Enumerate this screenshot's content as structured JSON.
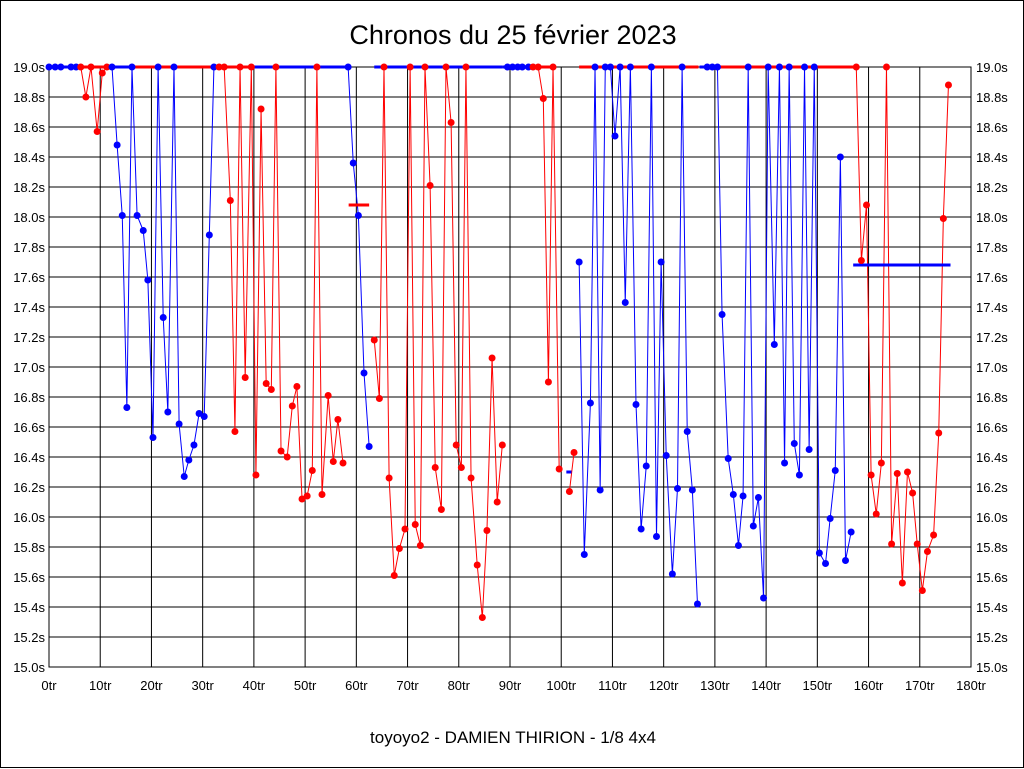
{
  "chart_data": {
    "type": "line",
    "title": "Chronos du 25 février 2023",
    "footer": "toyoyo2 - DAMIEN THIRION - 1/8 4x4",
    "xlim": [
      0,
      180
    ],
    "ylim": [
      15.0,
      19.0
    ],
    "x_ticks": [
      "0tr",
      "10tr",
      "20tr",
      "30tr",
      "40tr",
      "50tr",
      "60tr",
      "70tr",
      "80tr",
      "90tr",
      "100tr",
      "110tr",
      "120tr",
      "130tr",
      "140tr",
      "150tr",
      "160tr",
      "170tr",
      "180tr"
    ],
    "y_ticks": [
      "15.0s",
      "15.2s",
      "15.4s",
      "15.6s",
      "15.8s",
      "16.0s",
      "16.2s",
      "16.4s",
      "16.6s",
      "16.8s",
      "17.0s",
      "17.2s",
      "17.4s",
      "17.6s",
      "17.8s",
      "18.0s",
      "18.2s",
      "18.4s",
      "18.6s",
      "18.8s",
      "19.0s"
    ],
    "grid": true,
    "colors": {
      "A": "#0000ff",
      "B": "#ff0000"
    },
    "runs": [
      {
        "series": "A",
        "points": [
          [
            0,
            19
          ],
          [
            1.2,
            19
          ],
          [
            2.3,
            19
          ],
          [
            4.3,
            19
          ],
          [
            5.3,
            19
          ]
        ]
      },
      {
        "series": "B",
        "points": [
          [
            6.2,
            19
          ],
          [
            7.2,
            18.8
          ],
          [
            8.2,
            19
          ],
          [
            9.4,
            18.57
          ],
          [
            10.4,
            18.96
          ],
          [
            11.3,
            19
          ]
        ]
      },
      {
        "series": "A",
        "points": [
          [
            12.3,
            19
          ],
          [
            13.3,
            18.48
          ],
          [
            14.3,
            18.01
          ],
          [
            15.2,
            16.73
          ],
          [
            16.2,
            19
          ],
          [
            17.2,
            18.01
          ],
          [
            18.4,
            17.91
          ],
          [
            19.3,
            17.58
          ],
          [
            20.3,
            16.53
          ],
          [
            21.3,
            19
          ],
          [
            22.3,
            17.33
          ],
          [
            23.2,
            16.7
          ],
          [
            24.4,
            19
          ],
          [
            25.4,
            16.62
          ],
          [
            26.4,
            16.27
          ],
          [
            27.3,
            16.38
          ],
          [
            28.3,
            16.48
          ],
          [
            29.3,
            16.69
          ],
          [
            30.3,
            16.67
          ],
          [
            31.3,
            17.88
          ],
          [
            32.2,
            19
          ]
        ]
      },
      {
        "series": "B",
        "points": [
          [
            33.2,
            19
          ],
          [
            34.2,
            19
          ],
          [
            35.4,
            18.11
          ],
          [
            36.3,
            16.57
          ],
          [
            37.3,
            19
          ],
          [
            38.3,
            16.93
          ],
          [
            39.5,
            19
          ],
          [
            40.4,
            16.28
          ],
          [
            41.4,
            18.72
          ],
          [
            42.4,
            16.89
          ],
          [
            43.4,
            16.85
          ],
          [
            44.3,
            19
          ],
          [
            45.3,
            16.44
          ],
          [
            46.5,
            16.4
          ],
          [
            47.5,
            16.74
          ],
          [
            48.4,
            16.87
          ],
          [
            49.4,
            16.12
          ],
          [
            50.4,
            16.14
          ],
          [
            51.4,
            16.31
          ],
          [
            52.3,
            19
          ],
          [
            53.3,
            16.15
          ],
          [
            54.5,
            16.81
          ],
          [
            55.5,
            16.37
          ],
          [
            56.4,
            16.65
          ],
          [
            57.4,
            16.36
          ]
        ]
      },
      {
        "series": "A",
        "points": [
          [
            58.4,
            19
          ],
          [
            59.4,
            18.36
          ],
          [
            60.4,
            18.01
          ],
          [
            61.5,
            16.96
          ],
          [
            62.5,
            16.47
          ]
        ]
      },
      {
        "series": "B",
        "points": [
          [
            63.5,
            17.18
          ],
          [
            64.5,
            16.79
          ],
          [
            65.4,
            19
          ],
          [
            66.4,
            16.26
          ],
          [
            67.4,
            15.61
          ],
          [
            68.4,
            15.79
          ],
          [
            69.5,
            15.92
          ],
          [
            70.5,
            19
          ],
          [
            71.5,
            15.95
          ],
          [
            72.5,
            15.81
          ],
          [
            73.4,
            19
          ],
          [
            74.4,
            18.21
          ],
          [
            75.4,
            16.33
          ],
          [
            76.6,
            16.05
          ],
          [
            77.5,
            19
          ],
          [
            78.5,
            18.63
          ],
          [
            79.5,
            16.48
          ],
          [
            80.5,
            16.33
          ],
          [
            81.4,
            19
          ],
          [
            82.4,
            16.26
          ],
          [
            83.6,
            15.68
          ],
          [
            84.6,
            15.33
          ],
          [
            85.5,
            15.91
          ],
          [
            86.5,
            17.06
          ],
          [
            87.5,
            16.1
          ],
          [
            88.5,
            16.48
          ]
        ]
      },
      {
        "series": "A",
        "points": [
          [
            89.5,
            19
          ],
          [
            90.5,
            19
          ],
          [
            91.5,
            19
          ],
          [
            92.4,
            19
          ],
          [
            93.6,
            19
          ]
        ]
      },
      {
        "series": "B",
        "points": [
          [
            94.5,
            19
          ],
          [
            95.5,
            19
          ],
          [
            96.5,
            18.79
          ],
          [
            97.5,
            16.9
          ],
          [
            98.4,
            19
          ],
          [
            99.6,
            16.32
          ]
        ]
      },
      {
        "series": "B",
        "points": [
          [
            101.6,
            16.17
          ],
          [
            102.5,
            16.43
          ]
        ]
      },
      {
        "series": "A",
        "points": [
          [
            103.5,
            17.7
          ],
          [
            104.5,
            15.75
          ],
          [
            105.7,
            16.76
          ],
          [
            106.6,
            19
          ],
          [
            107.6,
            16.18
          ],
          [
            108.6,
            19
          ],
          [
            109.6,
            19
          ],
          [
            110.5,
            18.54
          ],
          [
            111.5,
            19
          ],
          [
            112.5,
            17.43
          ],
          [
            113.5,
            19
          ],
          [
            114.6,
            16.75
          ],
          [
            115.6,
            15.92
          ],
          [
            116.6,
            16.34
          ],
          [
            117.6,
            19
          ],
          [
            118.6,
            15.87
          ],
          [
            119.5,
            17.7
          ],
          [
            120.5,
            16.41
          ],
          [
            121.7,
            15.62
          ],
          [
            122.7,
            16.19
          ],
          [
            123.6,
            19
          ],
          [
            124.6,
            16.57
          ],
          [
            125.6,
            16.18
          ],
          [
            126.6,
            15.42
          ]
        ]
      },
      {
        "series": "A",
        "points": [
          [
            128.5,
            19
          ],
          [
            129.5,
            19
          ],
          [
            130.5,
            19
          ],
          [
            131.4,
            17.35
          ],
          [
            132.6,
            16.39
          ],
          [
            133.6,
            16.15
          ],
          [
            134.6,
            15.81
          ],
          [
            135.5,
            16.14
          ],
          [
            136.5,
            19
          ],
          [
            137.5,
            15.94
          ],
          [
            138.5,
            16.13
          ],
          [
            139.5,
            15.46
          ],
          [
            140.4,
            19
          ],
          [
            141.6,
            17.15
          ],
          [
            142.6,
            19
          ],
          [
            143.6,
            16.36
          ],
          [
            144.5,
            19
          ],
          [
            145.5,
            16.49
          ],
          [
            146.5,
            16.28
          ],
          [
            147.5,
            19
          ],
          [
            148.4,
            16.45
          ],
          [
            149.4,
            19
          ],
          [
            150.4,
            15.76
          ],
          [
            151.6,
            15.69
          ],
          [
            152.5,
            15.99
          ],
          [
            153.5,
            16.31
          ],
          [
            154.5,
            18.4
          ],
          [
            155.5,
            15.71
          ],
          [
            156.6,
            15.9
          ]
        ]
      },
      {
        "series": "B",
        "points": [
          [
            157.6,
            19
          ],
          [
            158.6,
            17.71
          ],
          [
            159.6,
            18.08
          ],
          [
            160.5,
            16.28
          ],
          [
            161.5,
            16.02
          ],
          [
            162.5,
            16.36
          ],
          [
            163.5,
            19
          ],
          [
            164.5,
            15.82
          ],
          [
            165.6,
            16.29
          ],
          [
            166.6,
            15.56
          ],
          [
            167.6,
            16.3
          ],
          [
            168.6,
            16.16
          ],
          [
            169.5,
            15.82
          ],
          [
            170.5,
            15.51
          ],
          [
            171.5,
            15.77
          ],
          [
            172.7,
            15.88
          ],
          [
            173.7,
            16.56
          ],
          [
            174.6,
            17.99
          ],
          [
            175.6,
            18.88
          ]
        ]
      }
    ],
    "top_bars": [
      {
        "series": "A",
        "from": 0,
        "to": 6.2
      },
      {
        "series": "B",
        "from": 6.2,
        "to": 11.5
      },
      {
        "series": "A",
        "from": 11.5,
        "to": 16
      },
      {
        "series": "B",
        "from": 16,
        "to": 39.5
      },
      {
        "series": "A",
        "from": 39.5,
        "to": 58.4
      },
      {
        "series": "A",
        "from": 63.5,
        "to": 88.5
      },
      {
        "series": "A",
        "from": 88.5,
        "to": 94
      },
      {
        "series": "B",
        "from": 94,
        "to": 99
      },
      {
        "series": "B",
        "from": 103.5,
        "to": 126.8
      },
      {
        "series": "A",
        "from": 127,
        "to": 130.5
      },
      {
        "series": "B",
        "from": 130.5,
        "to": 157.6
      }
    ],
    "averages": [
      {
        "series": "B",
        "from": 58.5,
        "to": 62.5,
        "value": 18.08
      },
      {
        "series": "A",
        "from": 101,
        "to": 102,
        "value": 16.3
      },
      {
        "series": "A",
        "from": 157,
        "to": 176,
        "value": 17.68
      }
    ]
  }
}
